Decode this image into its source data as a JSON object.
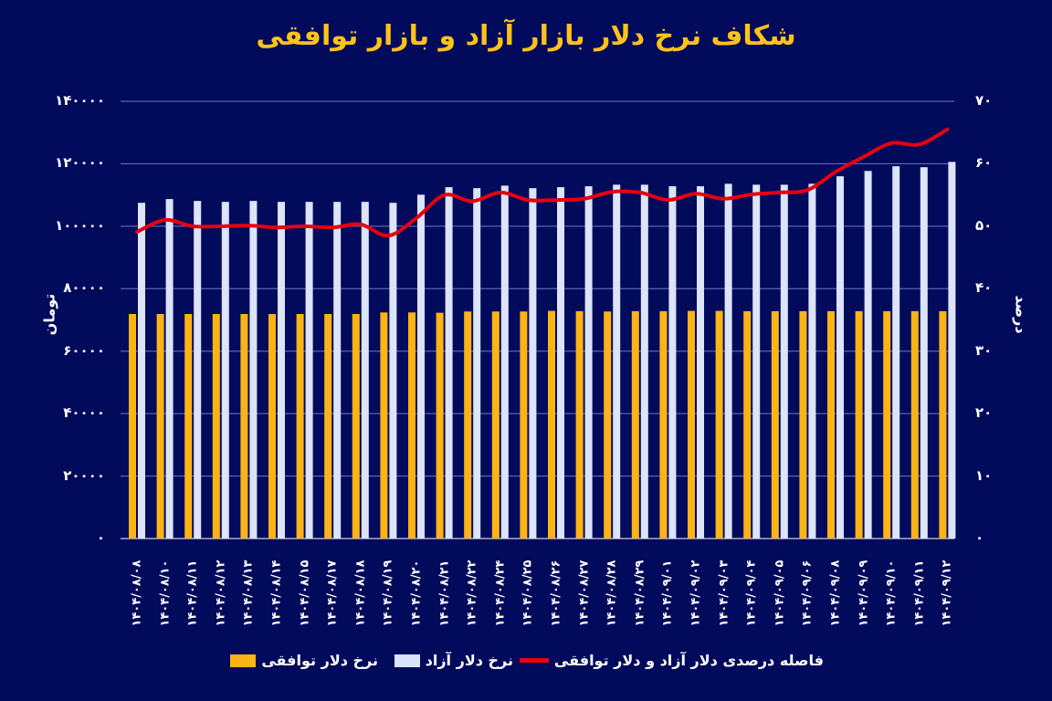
{
  "title": "شکاف نرخ دلار بازار آزاد و بازار توافقی",
  "axes": {
    "left_title": "تومان",
    "right_title": "درصد",
    "left_ticks": [
      "۱۴۰۰۰۰",
      "۱۲۰۰۰۰",
      "۱۰۰۰۰۰",
      "۸۰۰۰۰",
      "۶۰۰۰۰",
      "۴۰۰۰۰",
      "۲۰۰۰۰",
      "۰"
    ],
    "right_ticks": [
      "۷۰",
      "۶۰",
      "۵۰",
      "۴۰",
      "۳۰",
      "۲۰",
      "۱۰",
      "۰"
    ]
  },
  "legend": {
    "gap_label": "فاصله درصدی دلار آزاد و دلار توافقی",
    "free_label": "نرخ دلار آزاد",
    "agreed_label": "نرخ دلار توافقی"
  },
  "colors": {
    "background": "#020a5c",
    "title": "#ffc21a",
    "agreed_bar": "#fbb316",
    "free_bar": "#dbe4f8",
    "gap_line": "#e8000f",
    "grid": "#6f78c4"
  },
  "chart_data": {
    "type": "bar",
    "title": "شکاف نرخ دلار بازار آزاد و بازار توافقی",
    "xlabel": "",
    "ylabel": "تومان",
    "y2label": "درصد",
    "ylim": [
      0,
      140000
    ],
    "y2lim": [
      0,
      70
    ],
    "grid": true,
    "legend_position": "bottom",
    "categories": [
      "۱۴۰۴/۰۸/۰۸",
      "۱۴۰۴/۰۸/۱۰",
      "۱۴۰۴/۰۸/۱۱",
      "۱۴۰۴/۰۸/۱۲",
      "۱۴۰۴/۰۸/۱۳",
      "۱۴۰۴/۰۸/۱۴",
      "۱۴۰۴/۰۸/۱۵",
      "۱۴۰۴/۰۸/۱۷",
      "۱۴۰۴/۰۸/۱۸",
      "۱۴۰۴/۰۸/۱۹",
      "۱۴۰۴/۰۸/۲۰",
      "۱۴۰۴/۰۸/۲۱",
      "۱۴۰۴/۰۸/۲۲",
      "۱۴۰۴/۰۸/۲۴",
      "۱۴۰۴/۰۸/۲۵",
      "۱۴۰۴/۰۸/۲۶",
      "۱۴۰۴/۰۸/۲۷",
      "۱۴۰۴/۰۸/۲۸",
      "۱۴۰۴/۰۸/۲۹",
      "۱۴۰۴/۰۹/۰۱",
      "۱۴۰۴/۰۹/۰۲",
      "۱۴۰۴/۰۹/۰۳",
      "۱۴۰۴/۰۹/۰۴",
      "۱۴۰۴/۰۹/۰۵",
      "۱۴۰۴/۰۹/۰۶",
      "۱۴۰۴/۰۹/۰۸",
      "۱۴۰۴/۰۹/۰۹",
      "۱۴۰۴/۰۹/۱۰",
      "۱۴۰۴/۰۹/۱۱",
      "۱۴۰۴/۰۹/۱۲"
    ],
    "series": [
      {
        "name": "نرخ دلار توافقی",
        "type": "bar",
        "axis": "left",
        "values": [
          71900,
          71900,
          71900,
          71900,
          71900,
          71900,
          71900,
          71900,
          71900,
          72400,
          72400,
          72300,
          72700,
          72700,
          72700,
          72900,
          72800,
          72700,
          72800,
          72800,
          72900,
          72900,
          72800,
          72800,
          72800,
          72800,
          72800,
          72800,
          72800,
          72800
        ]
      },
      {
        "name": "نرخ دلار آزاد",
        "type": "bar",
        "axis": "left",
        "values": [
          107500,
          108700,
          108100,
          107800,
          108100,
          107800,
          107800,
          107800,
          107800,
          107500,
          110100,
          112500,
          112200,
          113000,
          112200,
          112500,
          112800,
          113300,
          113300,
          112800,
          112800,
          113600,
          113300,
          113300,
          113600,
          116000,
          117700,
          119200,
          118900,
          120600
        ]
      },
      {
        "name": "فاصله درصدی دلار آزاد و دلار توافقی",
        "type": "line",
        "axis": "right",
        "values": [
          49.1,
          51.0,
          50.0,
          50.0,
          50.1,
          49.8,
          50.0,
          49.8,
          50.3,
          48.5,
          51.3,
          55.0,
          54.0,
          55.4,
          54.2,
          54.2,
          54.4,
          55.5,
          55.4,
          54.2,
          55.2,
          54.4,
          55.1,
          55.4,
          55.8,
          58.7,
          61.1,
          63.3,
          63.1,
          65.5
        ]
      }
    ]
  }
}
